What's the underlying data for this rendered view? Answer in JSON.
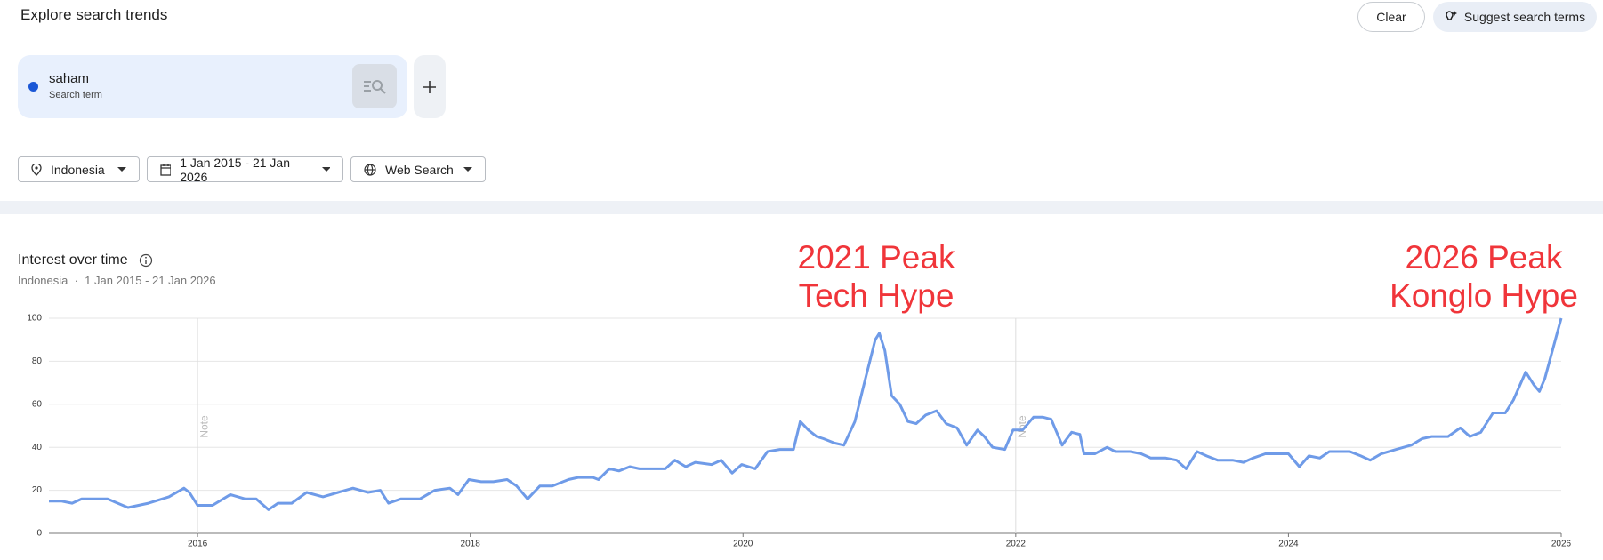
{
  "header": {
    "title": "Explore search trends",
    "clear_button": "Clear",
    "suggest_button": "Suggest search terms"
  },
  "search_term": {
    "subtitle": "Search term",
    "dot_color": "#1a57d6"
  },
  "filters": {
    "location": "Indonesia",
    "date_range": "1 Jan 2015 - 21 Jan 2026",
    "property": "Web Search"
  },
  "chart_data": {
    "type": "line",
    "title": "Interest over time",
    "subtitle_location": "Indonesia",
    "subtitle_range": "1 Jan 2015 - 21 Jan 2026",
    "annotations": [
      [
        "2021 Peak",
        "Tech Hype"
      ],
      [
        "2026 Peak",
        "Konglo Hype"
      ]
    ],
    "annotation_color": "#f0353a",
    "notes": [
      {
        "x": 2016,
        "label": "Note"
      },
      {
        "x": 2022,
        "label": "Note"
      }
    ],
    "x": [
      2014.91,
      2015.0,
      2015.08,
      2015.15,
      2015.34,
      2015.49,
      2015.64,
      2015.79,
      2015.9,
      2015.94,
      2016.0,
      2016.11,
      2016.24,
      2016.35,
      2016.43,
      2016.52,
      2016.59,
      2016.69,
      2016.8,
      2016.92,
      2017.03,
      2017.14,
      2017.25,
      2017.34,
      2017.4,
      2017.49,
      2017.63,
      2017.74,
      2017.85,
      2017.91,
      2017.99,
      2018.08,
      2018.17,
      2018.27,
      2018.34,
      2018.42,
      2018.51,
      2018.6,
      2018.72,
      2018.79,
      2018.9,
      2018.94,
      2019.02,
      2019.09,
      2019.17,
      2019.24,
      2019.43,
      2019.5,
      2019.58,
      2019.65,
      2019.77,
      2019.84,
      2019.92,
      2019.99,
      2020.09,
      2020.18,
      2020.27,
      2020.37,
      2020.42,
      2020.48,
      2020.54,
      2020.59,
      2020.67,
      2020.74,
      2020.82,
      2020.89,
      2020.97,
      2021.0,
      2021.04,
      2021.09,
      2021.15,
      2021.21,
      2021.27,
      2021.34,
      2021.42,
      2021.49,
      2021.57,
      2021.64,
      2021.72,
      2021.77,
      2021.83,
      2021.92,
      2021.98,
      2022.05,
      2022.13,
      2022.2,
      2022.26,
      2022.34,
      2022.41,
      2022.47,
      2022.5,
      2022.58,
      2022.67,
      2022.73,
      2022.84,
      2022.92,
      2022.99,
      2023.1,
      2023.18,
      2023.25,
      2023.33,
      2023.4,
      2023.48,
      2023.59,
      2023.67,
      2023.74,
      2023.83,
      2024.0,
      2024.08,
      2024.15,
      2024.23,
      2024.3,
      2024.45,
      2024.53,
      2024.6,
      2024.68,
      2024.79,
      2024.9,
      2024.98,
      2025.05,
      2025.17,
      2025.26,
      2025.33,
      2025.41,
      2025.5,
      2025.59,
      2025.65,
      2025.74,
      2025.8,
      2025.84,
      2025.88,
      2026.0
    ],
    "series": [
      {
        "name": "saham",
        "color": "#6f9be8",
        "values": [
          15,
          15,
          14,
          16,
          16,
          12,
          14,
          17,
          21,
          19,
          13,
          13,
          18,
          16,
          16,
          11,
          14,
          14,
          19,
          17,
          19,
          21,
          19,
          20,
          14,
          16,
          16,
          20,
          21,
          18,
          25,
          24,
          24,
          25,
          22,
          16,
          22,
          22,
          25,
          26,
          26,
          25,
          30,
          29,
          31,
          30,
          30,
          34,
          31,
          33,
          32,
          34,
          28,
          32,
          30,
          38,
          39,
          39,
          52,
          48,
          45,
          44,
          42,
          41,
          52,
          70,
          90,
          93,
          85,
          64,
          60,
          52,
          51,
          55,
          57,
          51,
          49,
          41,
          48,
          45,
          40,
          39,
          48,
          48,
          54,
          54,
          53,
          41,
          47,
          46,
          37,
          37,
          40,
          38,
          38,
          37,
          35,
          35,
          34,
          30,
          38,
          36,
          34,
          34,
          33,
          35,
          37,
          37,
          31,
          36,
          35,
          38,
          38,
          36,
          34,
          37,
          39,
          41,
          44,
          45,
          45,
          49,
          45,
          47,
          56,
          56,
          62,
          75,
          69,
          66,
          72,
          100
        ]
      }
    ],
    "xlim": [
      2014.91,
      2026
    ],
    "xticks": [
      2016,
      2018,
      2020,
      2022,
      2024,
      2026
    ],
    "ylim": [
      0,
      100
    ],
    "yticks": [
      0,
      20,
      40,
      60,
      80,
      100
    ],
    "grid": true
  }
}
